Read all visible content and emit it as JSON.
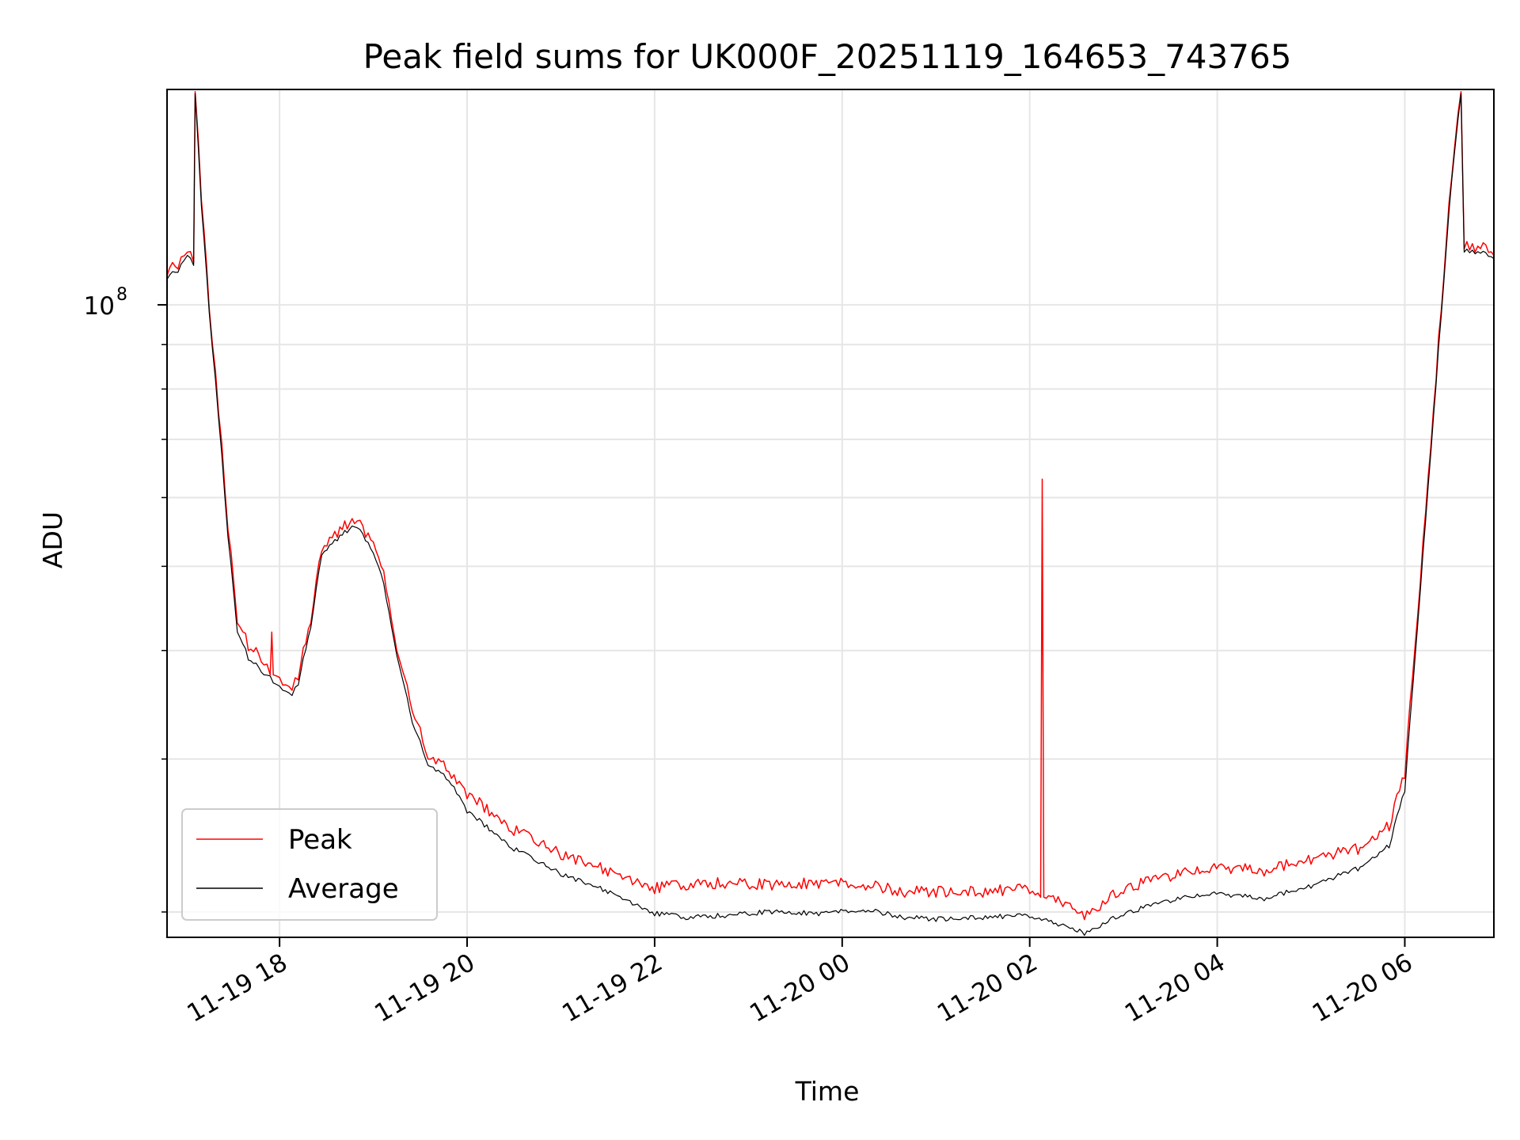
{
  "chart_data": {
    "type": "line",
    "title": "Peak field sums for UK000F_20251119_164653_743765",
    "xlabel": "Time",
    "ylabel": "ADU",
    "yscale": "log",
    "grid": true,
    "legend_position": "lower-left",
    "xlim": [
      "2025-11-19T16:48",
      "2025-11-20T06:57"
    ],
    "ylim": [
      18700000,
      177000000
    ],
    "x_ticks": [
      {
        "value": "2025-11-19T18:00",
        "label": "11-19 18"
      },
      {
        "value": "2025-11-19T20:00",
        "label": "11-19 20"
      },
      {
        "value": "2025-11-19T22:00",
        "label": "11-19 22"
      },
      {
        "value": "2025-11-20T00:00",
        "label": "11-20 00"
      },
      {
        "value": "2025-11-20T02:00",
        "label": "11-20 02"
      },
      {
        "value": "2025-11-20T04:00",
        "label": "11-20 04"
      },
      {
        "value": "2025-11-20T06:00",
        "label": "11-20 06"
      }
    ],
    "y_major_ticks": [
      {
        "value": 100000000,
        "label": "10",
        "exponent": "8"
      }
    ],
    "y_minor_ticks": [
      20000000,
      30000000,
      40000000,
      50000000,
      60000000,
      70000000,
      80000000,
      90000000
    ],
    "series": [
      {
        "name": "Peak",
        "color": "#ff0000",
        "x": [
          "2025-11-19T16:48",
          "2025-11-19T16:55",
          "2025-11-19T17:01",
          "2025-11-19T17:05",
          "2025-11-19T17:06",
          "2025-11-19T17:10",
          "2025-11-19T17:15",
          "2025-11-19T17:21",
          "2025-11-19T17:27",
          "2025-11-19T17:33",
          "2025-11-19T17:40",
          "2025-11-19T17:50",
          "2025-11-19T17:54",
          "2025-11-19T17:55",
          "2025-11-19T17:56",
          "2025-11-19T18:02",
          "2025-11-19T18:08",
          "2025-11-19T18:12",
          "2025-11-19T18:20",
          "2025-11-19T18:27",
          "2025-11-19T18:37",
          "2025-11-19T18:48",
          "2025-11-19T18:55",
          "2025-11-19T19:05",
          "2025-11-19T19:15",
          "2025-11-19T19:25",
          "2025-11-19T19:35",
          "2025-11-19T19:50",
          "2025-11-19T20:00",
          "2025-11-19T20:30",
          "2025-11-19T21:00",
          "2025-11-19T21:30",
          "2025-11-19T22:00",
          "2025-11-19T22:20",
          "2025-11-19T22:45",
          "2025-11-19T23:15",
          "2025-11-19T23:45",
          "2025-11-20T00:15",
          "2025-11-20T00:40",
          "2025-11-20T01:00",
          "2025-11-20T01:30",
          "2025-11-20T02:00",
          "2025-11-20T02:07",
          "2025-11-20T02:08",
          "2025-11-20T02:09",
          "2025-11-20T02:35",
          "2025-11-20T02:45",
          "2025-11-20T03:00",
          "2025-11-20T03:30",
          "2025-11-20T03:55",
          "2025-11-20T04:30",
          "2025-11-20T05:00",
          "2025-11-20T05:30",
          "2025-11-20T05:50",
          "2025-11-20T06:00",
          "2025-11-20T06:10",
          "2025-11-20T06:20",
          "2025-11-20T06:30",
          "2025-11-20T06:36",
          "2025-11-20T06:38",
          "2025-11-20T06:45",
          "2025-11-20T06:57"
        ],
        "values": [
          108000000,
          110000000,
          115000000,
          112000000,
          176000000,
          132000000,
          99000000,
          75000000,
          55000000,
          43000000,
          40000000,
          38500000,
          37500000,
          42000000,
          37500000,
          36500000,
          36000000,
          37000000,
          43000000,
          52000000,
          54000000,
          56000000,
          54000000,
          50000000,
          40000000,
          34000000,
          30000000,
          28500000,
          27000000,
          24500000,
          23000000,
          22000000,
          21000000,
          21200000,
          21300000,
          21200000,
          21300000,
          21200000,
          20800000,
          20800000,
          20800000,
          21000000,
          20800000,
          63000000,
          20800000,
          19600000,
          20100000,
          21000000,
          21700000,
          22200000,
          22000000,
          22700000,
          23300000,
          24800000,
          28500000,
          48000000,
          82000000,
          140000000,
          176000000,
          116000000,
          115000000,
          114000000
        ]
      },
      {
        "name": "Average",
        "color": "#000000",
        "x": [
          "2025-11-19T16:48",
          "2025-11-19T16:55",
          "2025-11-19T17:01",
          "2025-11-19T17:05",
          "2025-11-19T17:06",
          "2025-11-19T17:10",
          "2025-11-19T17:15",
          "2025-11-19T17:21",
          "2025-11-19T17:27",
          "2025-11-19T17:33",
          "2025-11-19T17:40",
          "2025-11-19T17:50",
          "2025-11-19T17:56",
          "2025-11-19T18:02",
          "2025-11-19T18:08",
          "2025-11-19T18:12",
          "2025-11-19T18:20",
          "2025-11-19T18:27",
          "2025-11-19T18:37",
          "2025-11-19T18:48",
          "2025-11-19T18:55",
          "2025-11-19T19:05",
          "2025-11-19T19:15",
          "2025-11-19T19:25",
          "2025-11-19T19:35",
          "2025-11-19T19:50",
          "2025-11-19T20:00",
          "2025-11-19T20:30",
          "2025-11-19T21:00",
          "2025-11-19T21:30",
          "2025-11-19T22:00",
          "2025-11-19T22:20",
          "2025-11-19T22:45",
          "2025-11-19T23:15",
          "2025-11-19T23:45",
          "2025-11-20T00:15",
          "2025-11-20T00:40",
          "2025-11-20T01:00",
          "2025-11-20T01:30",
          "2025-11-20T02:00",
          "2025-11-20T02:35",
          "2025-11-20T02:45",
          "2025-11-20T03:00",
          "2025-11-20T03:30",
          "2025-11-20T03:55",
          "2025-11-20T04:30",
          "2025-11-20T05:00",
          "2025-11-20T05:30",
          "2025-11-20T05:50",
          "2025-11-20T06:00",
          "2025-11-20T06:10",
          "2025-11-20T06:20",
          "2025-11-20T06:30",
          "2025-11-20T06:36",
          "2025-11-20T06:38",
          "2025-11-20T06:45",
          "2025-11-20T06:57"
        ],
        "values": [
          107000000,
          109000000,
          114000000,
          111000000,
          175000000,
          130000000,
          98000000,
          74000000,
          54000000,
          42000000,
          39000000,
          37500000,
          36700000,
          36000000,
          35500000,
          36500000,
          42500000,
          51500000,
          53500000,
          55500000,
          53500000,
          49000000,
          39500000,
          33000000,
          29500000,
          28000000,
          26000000,
          23500000,
          22000000,
          21000000,
          19800000,
          19600000,
          19700000,
          19900000,
          19800000,
          20000000,
          19600000,
          19500000,
          19600000,
          19700000,
          18800000,
          19200000,
          19800000,
          20500000,
          20900000,
          20600000,
          21300000,
          22300000,
          23700000,
          27500000,
          47000000,
          81000000,
          139000000,
          175000000,
          115000000,
          114500000,
          113000000
        ]
      }
    ]
  }
}
